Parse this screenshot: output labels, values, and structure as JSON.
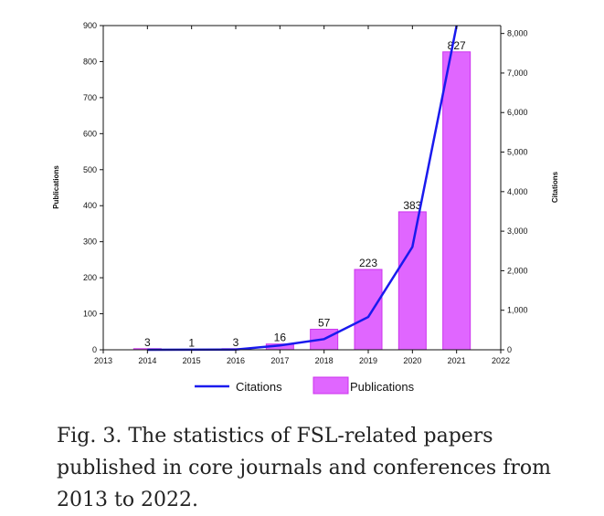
{
  "chart_data": {
    "type": "bar",
    "x": [
      2014,
      2015,
      2016,
      2017,
      2018,
      2019,
      2020,
      2021
    ],
    "xlim": [
      2013,
      2022
    ],
    "xticks": [
      "2013",
      "2014",
      "2015",
      "2016",
      "2017",
      "2018",
      "2019",
      "2020",
      "2021",
      "2022"
    ],
    "ylabel": "Publications",
    "ylim": [
      0,
      900
    ],
    "yticks": [
      "0",
      "100",
      "200",
      "300",
      "400",
      "500",
      "600",
      "700",
      "800",
      "900"
    ],
    "y2label": "Citations",
    "y2lim": [
      0,
      8200
    ],
    "y2ticks": [
      "0",
      "1,000",
      "2,000",
      "3,000",
      "4,000",
      "5,000",
      "6,000",
      "7,000",
      "8,000"
    ],
    "grid": false,
    "legend_position": "bottom",
    "series": [
      {
        "name": "Publications",
        "type": "bar",
        "axis": "left",
        "values": [
          3,
          1,
          3,
          16,
          57,
          223,
          383,
          827
        ],
        "labels": [
          "3",
          "1",
          "3",
          "16",
          "57",
          "223",
          "383",
          "827"
        ],
        "color": "#e066ff",
        "edge_color": "#cc33ee"
      },
      {
        "name": "Citations",
        "type": "line",
        "axis": "right",
        "values": [
          0,
          2,
          5,
          110,
          270,
          830,
          2600,
          8200
        ],
        "color": "#1a1aee"
      }
    ]
  },
  "caption": "Fig. 3.  The statistics of FSL-related papers published in core journals and conferences from 2013 to 2022."
}
